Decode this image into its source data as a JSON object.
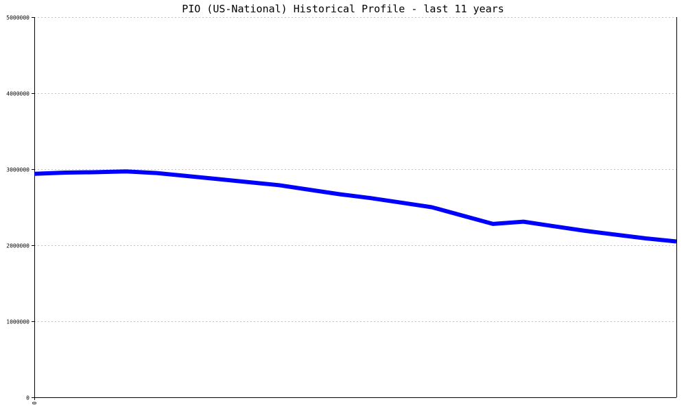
{
  "chart_data": {
    "type": "line",
    "title": "PIO (US-National) Historical Profile - last 11 years",
    "xlabel": "",
    "ylabel": "",
    "ylim": [
      0,
      5000000
    ],
    "y_ticks": [
      "0",
      "1000000",
      "2000000",
      "3000000",
      "4000000",
      "5000000"
    ],
    "x_ticks": [
      "0"
    ],
    "grid": true,
    "legend": "none",
    "line_color": "#0000ff",
    "series": [
      {
        "values": [
          2940000,
          2955000,
          2960000,
          2970000,
          2950000,
          2910000,
          2870000,
          2830000,
          2790000,
          2730000,
          2670000,
          2620000,
          2560000,
          2500000,
          2390000,
          2280000,
          2310000,
          2250000,
          2190000,
          2140000,
          2090000,
          2050000
        ]
      }
    ]
  }
}
